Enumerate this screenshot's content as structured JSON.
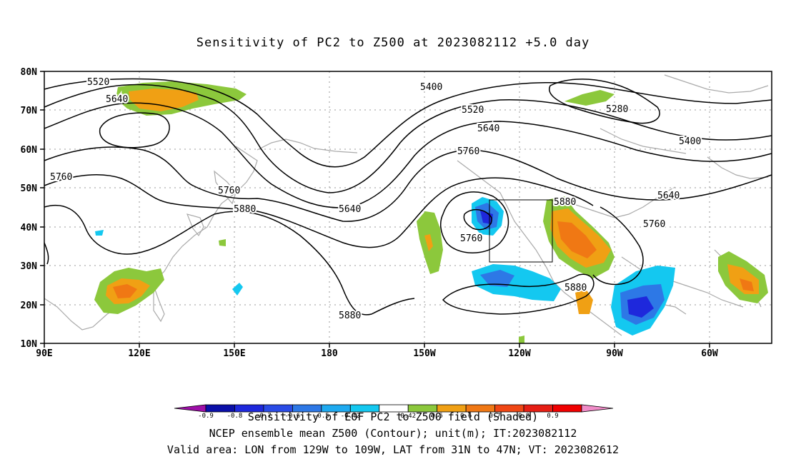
{
  "title": "Sensitivity of PC2 to Z500 at 2023082112 +5.0 day",
  "map": {
    "lat_labels": [
      "80N",
      "70N",
      "60N",
      "50N",
      "40N",
      "30N",
      "20N",
      "10N"
    ],
    "lon_labels": [
      "90E",
      "120E",
      "150E",
      "180",
      "150W",
      "120W",
      "90W",
      "60W"
    ],
    "contour_labels": [
      {
        "text": "5520",
        "id": "c1"
      },
      {
        "text": "5640",
        "id": "c2"
      },
      {
        "text": "5400",
        "id": "c3"
      },
      {
        "text": "5520",
        "id": "c4"
      },
      {
        "text": "5640",
        "id": "c5"
      },
      {
        "text": "5760",
        "id": "c6"
      },
      {
        "text": "5280",
        "id": "c7"
      },
      {
        "text": "5400",
        "id": "c8"
      },
      {
        "text": "5760",
        "id": "c9"
      },
      {
        "text": "5760",
        "id": "c10"
      },
      {
        "text": "5880",
        "id": "c11"
      },
      {
        "text": "5640",
        "id": "c12"
      },
      {
        "text": "5760",
        "id": "c13"
      },
      {
        "text": "5880",
        "id": "c14"
      },
      {
        "text": "5640",
        "id": "c15"
      },
      {
        "text": "5760",
        "id": "c16"
      },
      {
        "text": "5880",
        "id": "c17"
      },
      {
        "text": "5880",
        "id": "c18"
      }
    ],
    "valid_area_box": {
      "lon_from": "129W",
      "lon_to": "109W",
      "lat_from": "31N",
      "lat_to": "47N"
    }
  },
  "colorbar": {
    "colors": [
      "#9e0fa8",
      "#0a0fa8",
      "#1e28dc",
      "#2a4be6",
      "#2d78e6",
      "#1eaaf0",
      "#14c8f0",
      "#ffffff",
      "#8cc83c",
      "#f0a014",
      "#f07814",
      "#f04614",
      "#e61e14",
      "#f00000",
      "#f08cc8"
    ],
    "tick_labels": [
      "-0.9",
      "-0.8",
      "-0.7",
      "-0.6",
      "-0.5",
      "-0.42",
      "0.42",
      "0.5",
      "0.6",
      "0.7",
      "0.8",
      "0.9"
    ]
  },
  "colorbar_title": "Sensitivity of EOF PC2 to Z500 field (Shaded)",
  "footer_line1": "NCEP ensemble mean Z500 (Contour); unit(m); IT:2023082112",
  "footer_line2": "Valid area: LON from 129W to 109W, LAT from 31N to 47N; VT: 2023082612"
}
